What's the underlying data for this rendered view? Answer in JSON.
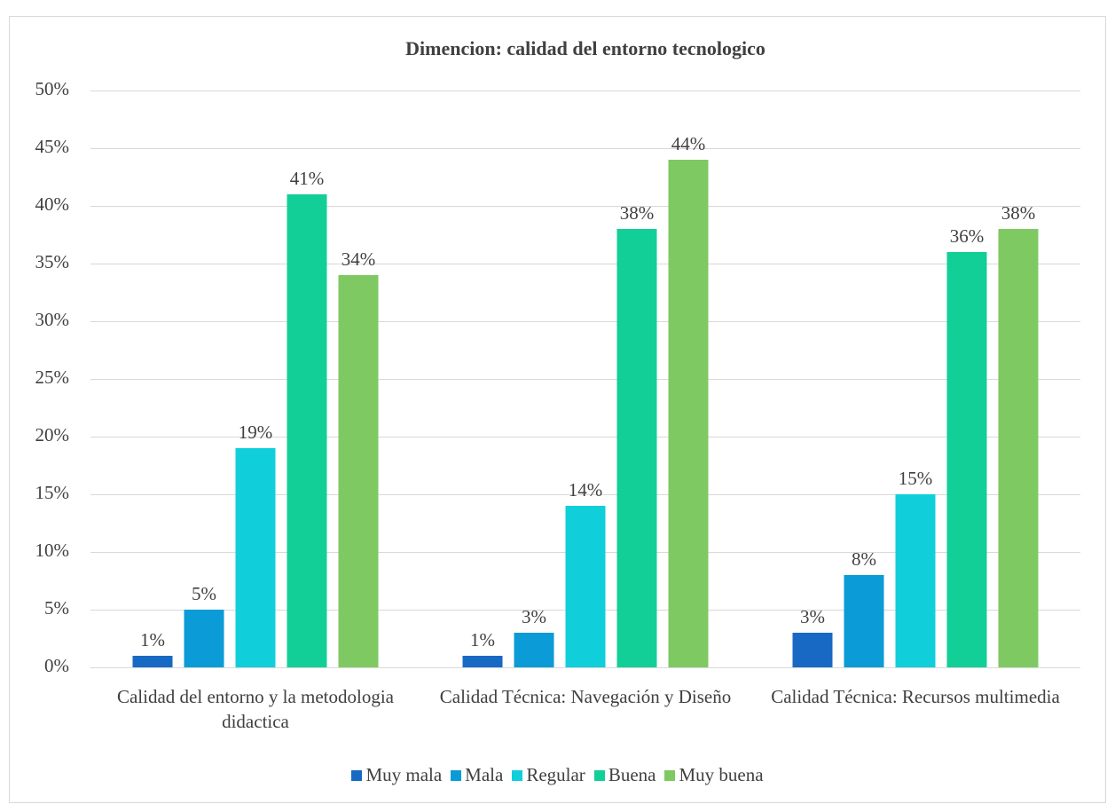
{
  "chart_data": {
    "type": "bar",
    "title": "Dimencion: calidad del entorno tecnologico",
    "categories": [
      "Calidad del entorno y la metodologia didactica",
      "Calidad Técnica: Navegación y Diseño",
      "Calidad Técnica: Recursos multimedia"
    ],
    "series": [
      {
        "name": "Muy mala",
        "color": "#1769c4",
        "values": [
          1,
          1,
          3
        ],
        "value_labels": [
          "1%",
          "1%",
          "3%"
        ]
      },
      {
        "name": "Mala",
        "color": "#0b9bd6",
        "values": [
          5,
          3,
          8
        ],
        "value_labels": [
          "5%",
          "3%",
          "8%"
        ]
      },
      {
        "name": "Regular",
        "color": "#10cfdb",
        "values": [
          19,
          14,
          15
        ],
        "value_labels": [
          "19%",
          "14%",
          "15%"
        ]
      },
      {
        "name": "Buena",
        "color": "#12cf97",
        "values": [
          41,
          38,
          36
        ],
        "value_labels": [
          "41%",
          "38%",
          "36%"
        ]
      },
      {
        "name": "Muy buena",
        "color": "#7ec962",
        "values": [
          34,
          44,
          38
        ],
        "value_labels": [
          "34%",
          "44%",
          "38%"
        ]
      }
    ],
    "ylim": [
      0,
      50
    ],
    "yticks": [
      {
        "value": 0,
        "label": "0%"
      },
      {
        "value": 5,
        "label": "5%"
      },
      {
        "value": 10,
        "label": "10%"
      },
      {
        "value": 15,
        "label": "15%"
      },
      {
        "value": 20,
        "label": "20%"
      },
      {
        "value": 25,
        "label": "25%"
      },
      {
        "value": 30,
        "label": "30%"
      },
      {
        "value": 35,
        "label": "35%"
      },
      {
        "value": 40,
        "label": "40%"
      },
      {
        "value": 45,
        "label": "45%"
      },
      {
        "value": 50,
        "label": "50%"
      }
    ],
    "grid": true,
    "legend": "bottom"
  }
}
